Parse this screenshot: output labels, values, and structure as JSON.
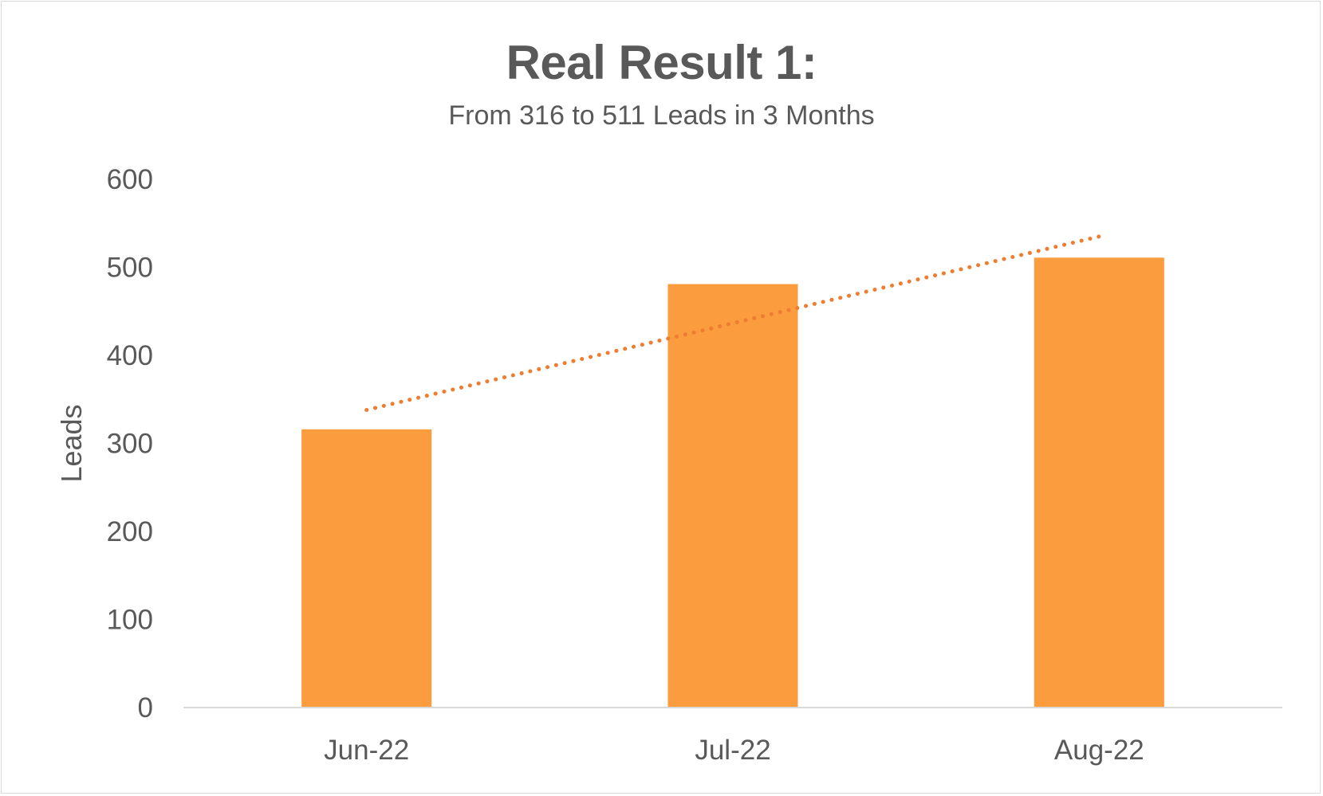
{
  "chart_data": {
    "type": "bar",
    "title": "Real Result 1:",
    "subtitle": "From 316 to 511 Leads in 3 Months",
    "ylabel": "Leads",
    "xlabel": "",
    "categories": [
      "Jun-22",
      "Jul-22",
      "Aug-22"
    ],
    "values": [
      316,
      481,
      511
    ],
    "ylim": [
      0,
      600
    ],
    "yticks": [
      0,
      100,
      200,
      300,
      400,
      500,
      600
    ],
    "ytick_labels": [
      "0",
      "100",
      "200",
      "300",
      "400",
      "500",
      "600"
    ],
    "grid": false,
    "legend": "none",
    "trendline": {
      "type": "linear",
      "style": "dotted",
      "start_value": 338,
      "end_value": 535
    },
    "colors": {
      "bar": "#FB9D3F",
      "trendline": "#ED7D31",
      "text": "#595959",
      "axis": "#D9D9D9"
    }
  }
}
